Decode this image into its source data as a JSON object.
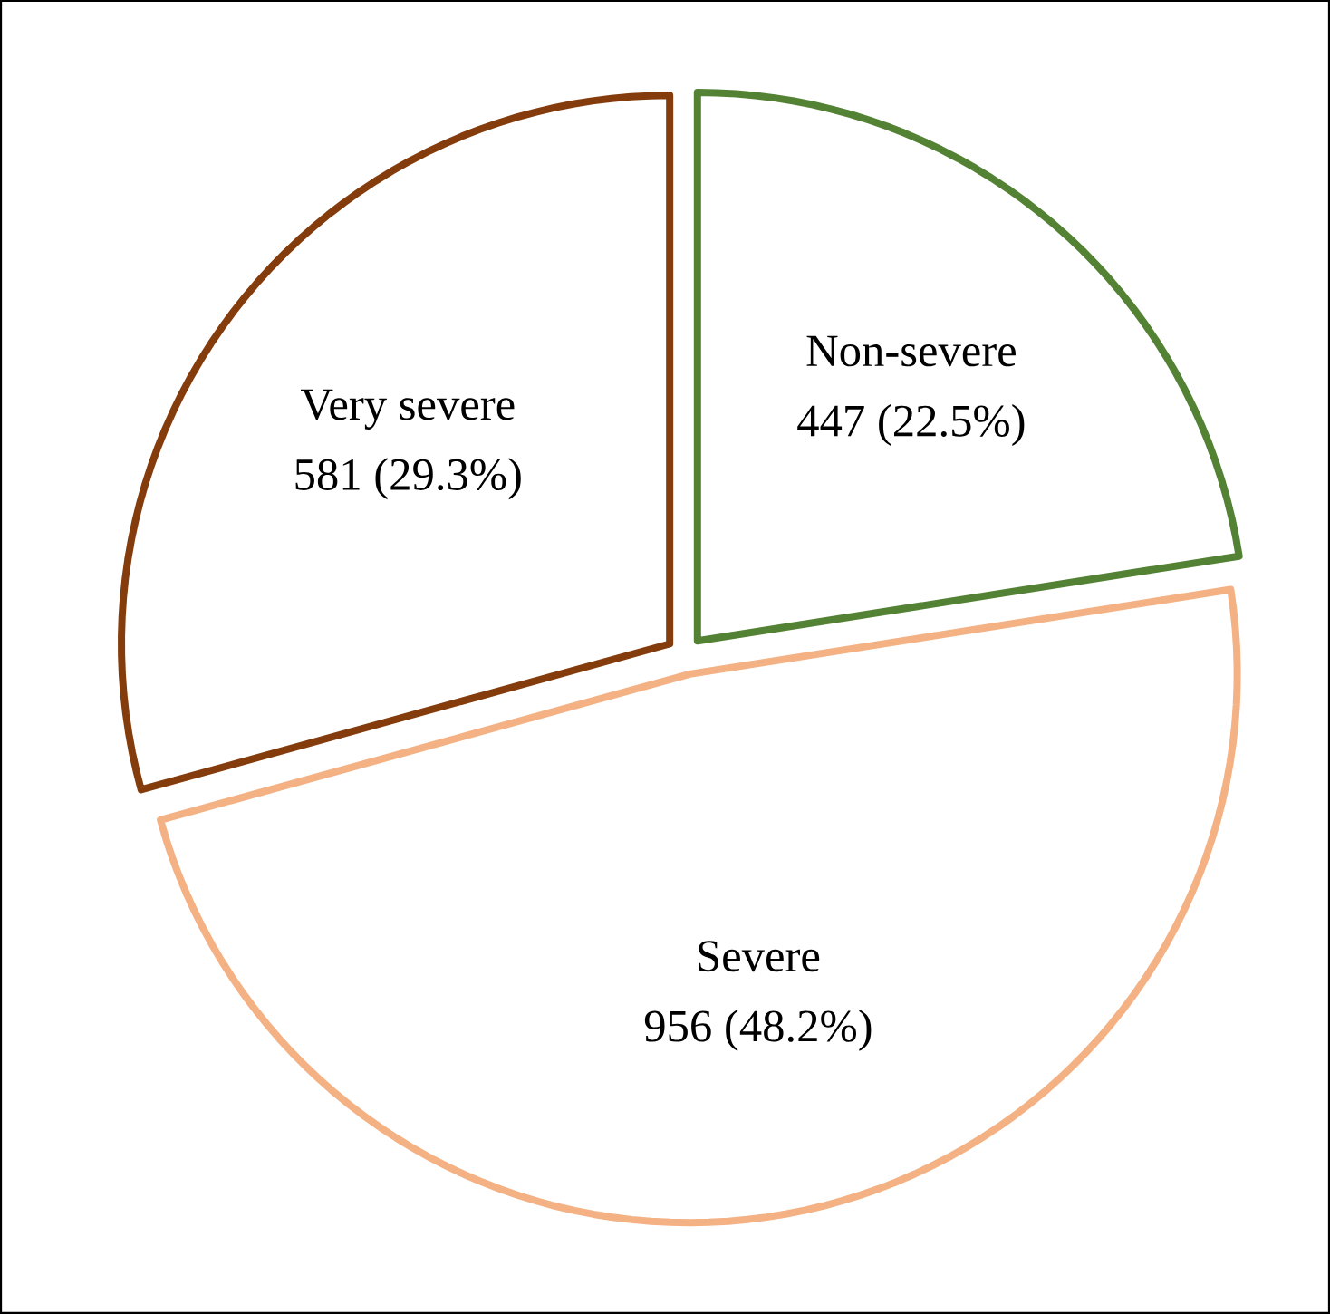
{
  "chart_data": {
    "type": "pie",
    "categories": [
      "Non-severe",
      "Severe",
      "Very severe"
    ],
    "values": [
      447,
      956,
      581
    ],
    "colors": [
      "#548235",
      "#f4b183",
      "#843c0c"
    ],
    "value_labels": [
      "447 (22.5%)",
      "956 (48.2%)",
      "581 (29.3%)"
    ]
  }
}
